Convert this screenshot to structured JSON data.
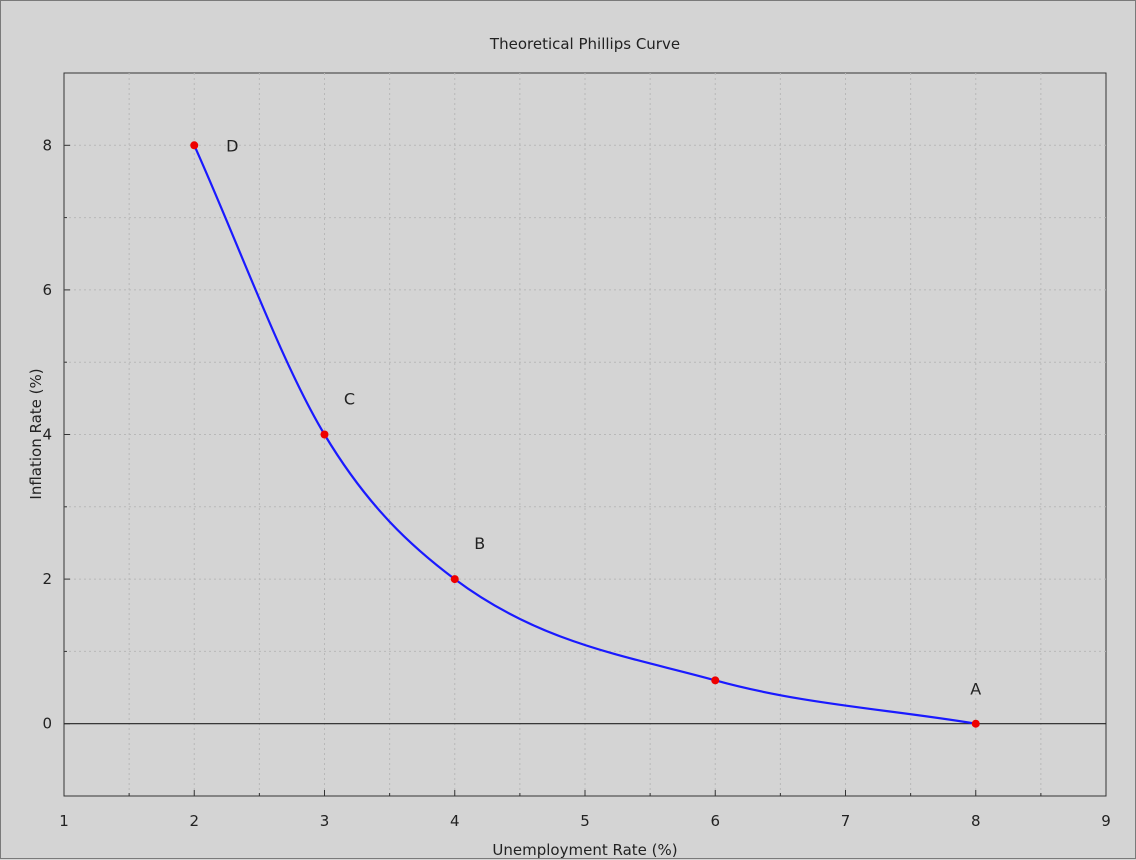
{
  "chart_data": {
    "type": "line",
    "title": "Theoretical Phillips Curve",
    "xlabel": "Unemployment Rate (%)",
    "ylabel": "Inflation Rate (%)",
    "xlim": [
      1,
      9
    ],
    "ylim": [
      -1,
      9
    ],
    "x_ticks": [
      1,
      2,
      3,
      4,
      5,
      6,
      7,
      8,
      9
    ],
    "y_ticks": [
      0,
      2,
      4,
      6,
      8
    ],
    "grid": true,
    "series": [
      {
        "x": [
          2,
          3,
          4,
          6,
          8
        ],
        "y": [
          8,
          4,
          2,
          0.6,
          0
        ],
        "labels": [
          "D",
          "C",
          "B",
          "",
          "A"
        ],
        "line_color": "#1a1aff",
        "marker_color": "#ee0000"
      }
    ]
  }
}
